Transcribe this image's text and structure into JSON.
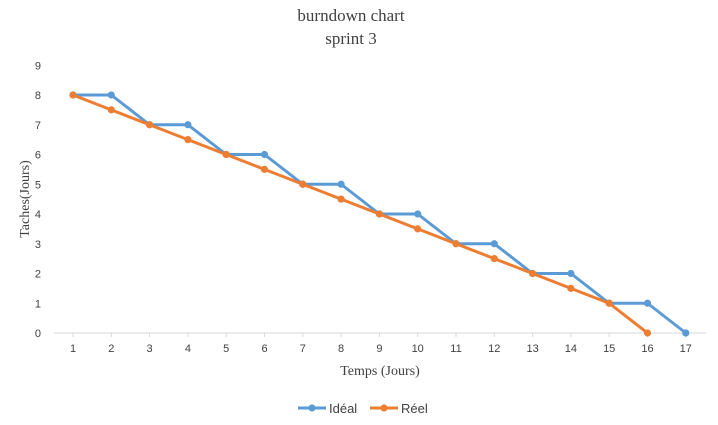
{
  "chart_data": {
    "type": "line",
    "title": "burndown chart",
    "subtitle": "sprint 3",
    "xlabel": "Temps (Jours)",
    "ylabel": "Taches(Jours)",
    "x": [
      1,
      2,
      3,
      4,
      5,
      6,
      7,
      8,
      9,
      10,
      11,
      12,
      13,
      14,
      15,
      16,
      17
    ],
    "ylim": [
      0,
      9
    ],
    "yticks": [
      0,
      1,
      2,
      3,
      4,
      5,
      6,
      7,
      8,
      9
    ],
    "grid": false,
    "legend_position": "bottom",
    "series": [
      {
        "name": "Idéal",
        "color": "#5b9bd5",
        "values": [
          8,
          8,
          7,
          7,
          6,
          6,
          5,
          5,
          4,
          4,
          3,
          3,
          2,
          2,
          1,
          1,
          0
        ]
      },
      {
        "name": "Réel",
        "color": "#ed7d31",
        "values": [
          8,
          7.5,
          7,
          6.5,
          6,
          5.5,
          5,
          4.5,
          4,
          3.5,
          3,
          2.5,
          2,
          1.5,
          1,
          0,
          null
        ]
      }
    ]
  }
}
